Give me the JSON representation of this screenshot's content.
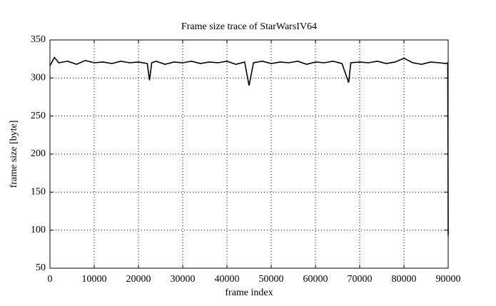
{
  "chart_data": {
    "type": "line",
    "title": "Frame size trace of StarWarsIV64",
    "x_label": "frame index",
    "y_label": "frame size [byte]",
    "x": [
      0,
      1000,
      2000,
      4000,
      6000,
      8000,
      10000,
      12000,
      14000,
      16000,
      18000,
      20000,
      22000,
      22500,
      23000,
      24000,
      26000,
      28000,
      30000,
      32000,
      34000,
      36000,
      38000,
      40000,
      42000,
      44000,
      45000,
      46000,
      48000,
      50000,
      52000,
      54000,
      56000,
      58000,
      60000,
      62000,
      64000,
      66000,
      67500,
      68000,
      70000,
      72000,
      74000,
      76000,
      78000,
      80000,
      82000,
      84000,
      86000,
      88000,
      89500,
      89900,
      90000
    ],
    "series": [
      {
        "name": "frame size",
        "color": "#000000",
        "values": [
          316,
          327,
          320,
          322,
          318,
          323,
          320,
          321,
          319,
          322,
          320,
          321,
          319,
          297,
          320,
          322,
          318,
          321,
          320,
          322,
          319,
          321,
          320,
          322,
          318,
          321,
          290,
          320,
          322,
          319,
          321,
          320,
          322,
          318,
          321,
          320,
          322,
          319,
          294,
          320,
          321,
          320,
          322,
          319,
          321,
          326,
          320,
          318,
          321,
          320,
          319,
          320,
          93
        ]
      }
    ],
    "xlim": [
      0,
      90000
    ],
    "ylim": [
      50,
      350
    ],
    "xticks": [
      0,
      10000,
      20000,
      30000,
      40000,
      50000,
      60000,
      70000,
      80000,
      90000
    ],
    "yticks": [
      50,
      100,
      150,
      200,
      250,
      300,
      350
    ],
    "grid": true
  }
}
